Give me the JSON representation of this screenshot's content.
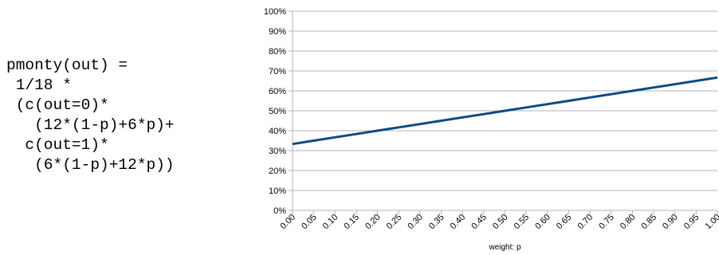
{
  "formula": {
    "lines": [
      "pmonty(out) =",
      " 1/18 *",
      " (c(out=0)*",
      "   (12*(1-p)+6*p)+",
      "  c(out=1)*",
      "   (6*(1-p)+12*p))"
    ]
  },
  "chart_data": {
    "type": "line",
    "title": "",
    "xlabel": "weight: p",
    "ylabel": "",
    "x_tick_labels": [
      "0.00",
      "0.05",
      "0.10",
      "0.15",
      "0.20",
      "0.25",
      "0.30",
      "0.35",
      "0.40",
      "0.45",
      "0.50",
      "0.55",
      "0.60",
      "0.65",
      "0.70",
      "0.75",
      "0.80",
      "0.85",
      "0.90",
      "0.95",
      "1.00"
    ],
    "y_tick_labels": [
      "0%",
      "10%",
      "20%",
      "30%",
      "40%",
      "50%",
      "60%",
      "70%",
      "80%",
      "90%",
      "100%"
    ],
    "xlim": [
      0,
      1
    ],
    "ylim": [
      0,
      1
    ],
    "grid": true,
    "legend": "none",
    "series": [
      {
        "color": "#0b4a84",
        "x": [
          0.0,
          0.05,
          0.1,
          0.15,
          0.2,
          0.25,
          0.3,
          0.35,
          0.4,
          0.45,
          0.5,
          0.55,
          0.6,
          0.65,
          0.7,
          0.75,
          0.8,
          0.85,
          0.9,
          0.95,
          1.0
        ],
        "y": [
          0.3333,
          0.35,
          0.3667,
          0.3833,
          0.4,
          0.4167,
          0.4333,
          0.45,
          0.4667,
          0.4833,
          0.5,
          0.5167,
          0.5333,
          0.55,
          0.5667,
          0.5833,
          0.6,
          0.6167,
          0.6333,
          0.65,
          0.6667
        ]
      }
    ]
  }
}
